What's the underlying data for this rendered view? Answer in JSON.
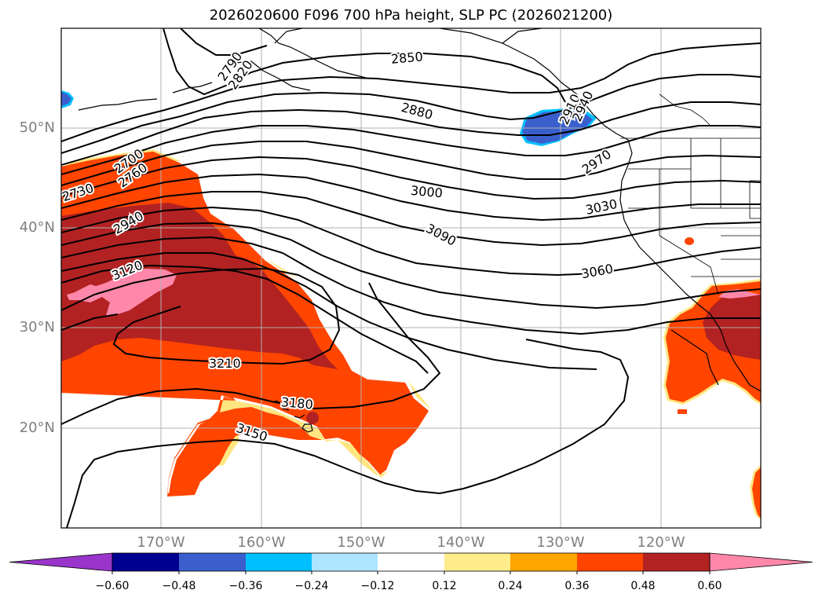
{
  "title": "2026020600 F096 700 hPa height, SLP PC (2026021200)",
  "lat_labels": [
    "50°N",
    "40°N",
    "30°N",
    "20°N"
  ],
  "lon_labels": [
    "170°W",
    "160°W",
    "150°W",
    "140°W",
    "130°W",
    "120°W"
  ],
  "contour_labels": [
    "2790",
    "2820",
    "2850",
    "2880",
    "2910",
    "2940",
    "2970",
    "2700",
    "2730",
    "2760",
    "2940",
    "3000",
    "3030",
    "3060",
    "3090",
    "3120",
    "3150",
    "3180",
    "3210"
  ],
  "colorbar": {
    "tick_labels": [
      "−0.60",
      "−0.48",
      "−0.36",
      "−0.24",
      "−0.12",
      "0.12",
      "0.24",
      "0.36",
      "0.48",
      "0.60"
    ],
    "colors": [
      "#9a35cc",
      "#000090",
      "#3a5fcd",
      "#00bfff",
      "#ade4ff",
      "#ffffff",
      "#ffec8b",
      "#ffa500",
      "#ff4500",
      "#b22222",
      "#ff88aa"
    ]
  },
  "chart_data": {
    "type": "contour-map",
    "title": "2026020600 F096 700 hPa height, SLP PC (2026021200)",
    "lat_range": [
      10,
      60
    ],
    "lon_range": [
      -180,
      -110
    ],
    "contour_field": "700 hPa height (m)",
    "contour_interval": 30,
    "contour_levels_labeled": [
      2700,
      2730,
      2760,
      2790,
      2820,
      2850,
      2880,
      2910,
      2940,
      2970,
      3000,
      3030,
      3060,
      3090,
      3120,
      3150,
      3180,
      3210
    ],
    "shaded_field": "SLP PC",
    "shading_levels": [
      -0.6,
      -0.48,
      -0.36,
      -0.24,
      -0.12,
      0.12,
      0.24,
      0.36,
      0.48,
      0.6
    ]
  }
}
